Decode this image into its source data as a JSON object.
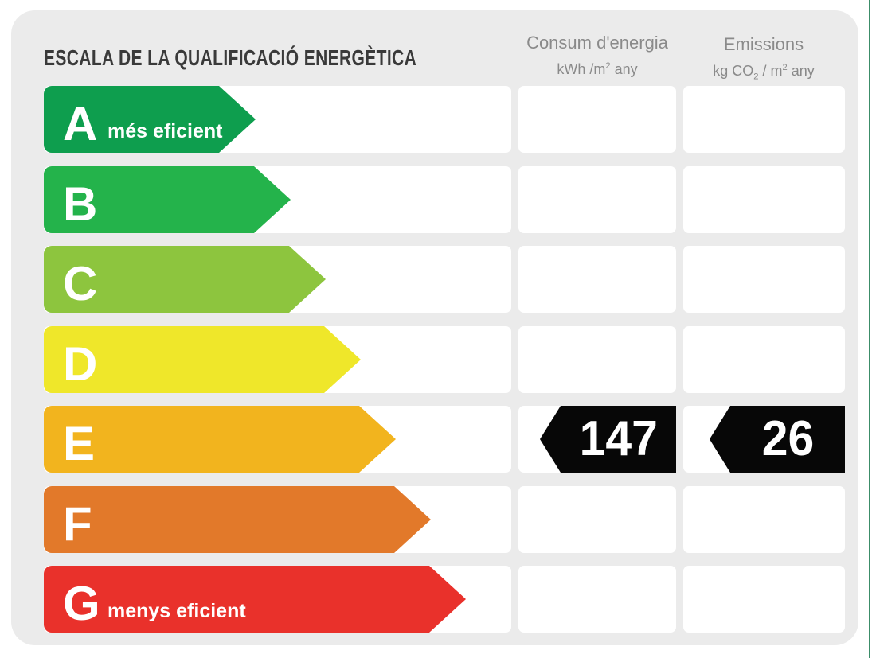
{
  "title": "ESCALA DE LA QUALIFICACIÓ ENERGÈTICA",
  "palette": {
    "panel_background": "#ebebeb",
    "cell_background": "#ffffff",
    "header_text": "#8a8a8a",
    "title_text": "#3a3a3a",
    "badge_background": "#070707",
    "edge_line": "#3c8d69"
  },
  "columns": {
    "consumption": {
      "title": "Consum d'energia",
      "unit": {
        "pre": "kWh /m",
        "sup": "2",
        "post": " any"
      }
    },
    "emissions": {
      "title": "Emissions",
      "unit": {
        "pre": "kg CO",
        "sub": "2",
        "mid": " / m",
        "sup": "2",
        "post": " any"
      }
    }
  },
  "rows": [
    {
      "grade": "A",
      "note": "més eficient",
      "color": "#0e9e4e"
    },
    {
      "grade": "B",
      "note": "",
      "color": "#24b34b"
    },
    {
      "grade": "C",
      "note": "",
      "color": "#8dc53e"
    },
    {
      "grade": "D",
      "note": "",
      "color": "#efe72a"
    },
    {
      "grade": "E",
      "note": "",
      "color": "#f2b41e"
    },
    {
      "grade": "F",
      "note": "",
      "color": "#e2792a"
    },
    {
      "grade": "G",
      "note": "menys eficient",
      "color": "#e9312b"
    }
  ],
  "rating": {
    "grade": "E",
    "consumption_value": "147",
    "emissions_value": "26"
  },
  "chart_data": {
    "type": "bar",
    "title": "ESCALA DE LA QUALIFICACIÓ ENERGÈTICA",
    "categories": [
      "A",
      "B",
      "C",
      "D",
      "E",
      "F",
      "G"
    ],
    "category_notes": {
      "A": "més eficient",
      "G": "menys eficient"
    },
    "bar_colors": [
      "#0e9e4e",
      "#24b34b",
      "#8dc53e",
      "#efe72a",
      "#f2b41e",
      "#e2792a",
      "#e9312b"
    ],
    "selected_rating": "E",
    "series": [
      {
        "name": "Consum d'energia (kWh/m² any)",
        "values": [
          null,
          null,
          null,
          null,
          147,
          null,
          null
        ]
      },
      {
        "name": "Emissions (kg CO₂/m² any)",
        "values": [
          null,
          null,
          null,
          null,
          26,
          null,
          null
        ]
      }
    ],
    "legend_position": "top",
    "grid": false
  }
}
